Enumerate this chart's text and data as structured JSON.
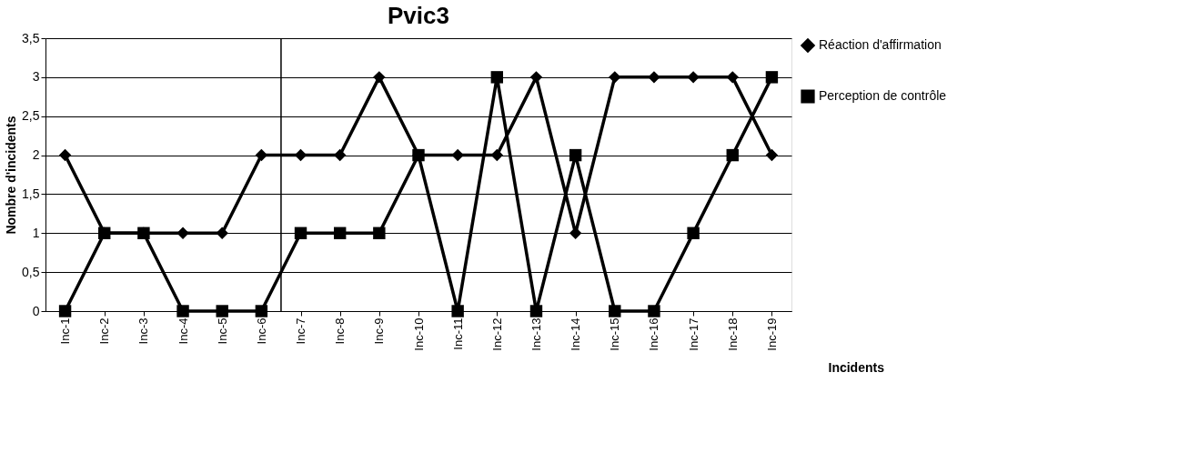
{
  "chart_data": {
    "type": "line",
    "title": "Pvic3",
    "xlabel": "Incidents",
    "ylabel": "Nombre d'incidents",
    "categories": [
      "Inc-1",
      "Inc-2",
      "Inc-3",
      "Inc-4",
      "Inc-5",
      "Inc-6",
      "Inc-7",
      "Inc-8",
      "Inc-9",
      "Inc-10",
      "Inc-11",
      "Inc-12",
      "Inc-13",
      "Inc-14",
      "Inc-15",
      "Inc-16",
      "Inc-17",
      "Inc-18",
      "Inc-19"
    ],
    "series": [
      {
        "name": "Réaction d'affirmation",
        "color": "#000000",
        "marker": "diamond",
        "values": [
          2,
          1,
          1,
          1,
          1,
          2,
          2,
          2,
          3,
          2,
          2,
          2,
          3,
          1,
          3,
          3,
          3,
          3,
          2
        ]
      },
      {
        "name": "Perception de contrôle",
        "color": "#000000",
        "marker": "square",
        "values": [
          0,
          1,
          1,
          0,
          0,
          0,
          1,
          1,
          1,
          2,
          0,
          3,
          0,
          2,
          0,
          0,
          1,
          2,
          3
        ]
      }
    ],
    "ylim": [
      0,
      3.5
    ],
    "yticks": [
      0,
      {
        "value": 0.5,
        "label": "0,5"
      },
      1,
      {
        "value": 1.5,
        "label": "1,5"
      },
      2,
      {
        "value": 2.5,
        "label": "2,5"
      },
      3,
      {
        "value": 3.5,
        "label": "3,5"
      }
    ],
    "ref_lines": [
      {
        "axis": "x",
        "value": "Inc-7",
        "color": "#000000"
      }
    ],
    "grid": "y",
    "legend": "right",
    "line_style": "solid"
  }
}
